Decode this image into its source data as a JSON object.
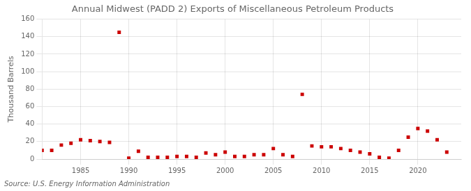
{
  "chart_data": {
    "type": "scatter",
    "title": "Annual Midwest (PADD 2) Exports of Miscellaneous Petroleum Products",
    "ylabel": "Thousand Barrels",
    "source": "Source: U.S. Energy Information Administration",
    "x": [
      1981,
      1982,
      1983,
      1984,
      1985,
      1986,
      1987,
      1988,
      1989,
      1990,
      1991,
      1992,
      1993,
      1994,
      1995,
      1996,
      1997,
      1998,
      1999,
      2000,
      2001,
      2002,
      2003,
      2004,
      2005,
      2006,
      2007,
      2008,
      2009,
      2010,
      2011,
      2012,
      2013,
      2014,
      2015,
      2016,
      2017,
      2018,
      2019,
      2020,
      2021,
      2022,
      2023
    ],
    "values": [
      10,
      10,
      16,
      18,
      22,
      21,
      20,
      19,
      145,
      1,
      9,
      2,
      2,
      2,
      3,
      3,
      2,
      7,
      5,
      8,
      3,
      3,
      5,
      5,
      12,
      5,
      3,
      74,
      15,
      14,
      14,
      12,
      10,
      8,
      6,
      2,
      1,
      10,
      25,
      35,
      32,
      22,
      8
    ],
    "color": "#cc0000",
    "marker": "square",
    "xlim": [
      1981,
      2024.5
    ],
    "ylim": [
      0,
      160
    ],
    "xticks": [
      1985,
      1990,
      1995,
      2000,
      2005,
      2010,
      2015,
      2020
    ],
    "yticks": [
      0,
      20,
      40,
      60,
      80,
      100,
      120,
      140,
      160
    ],
    "grid": true
  }
}
